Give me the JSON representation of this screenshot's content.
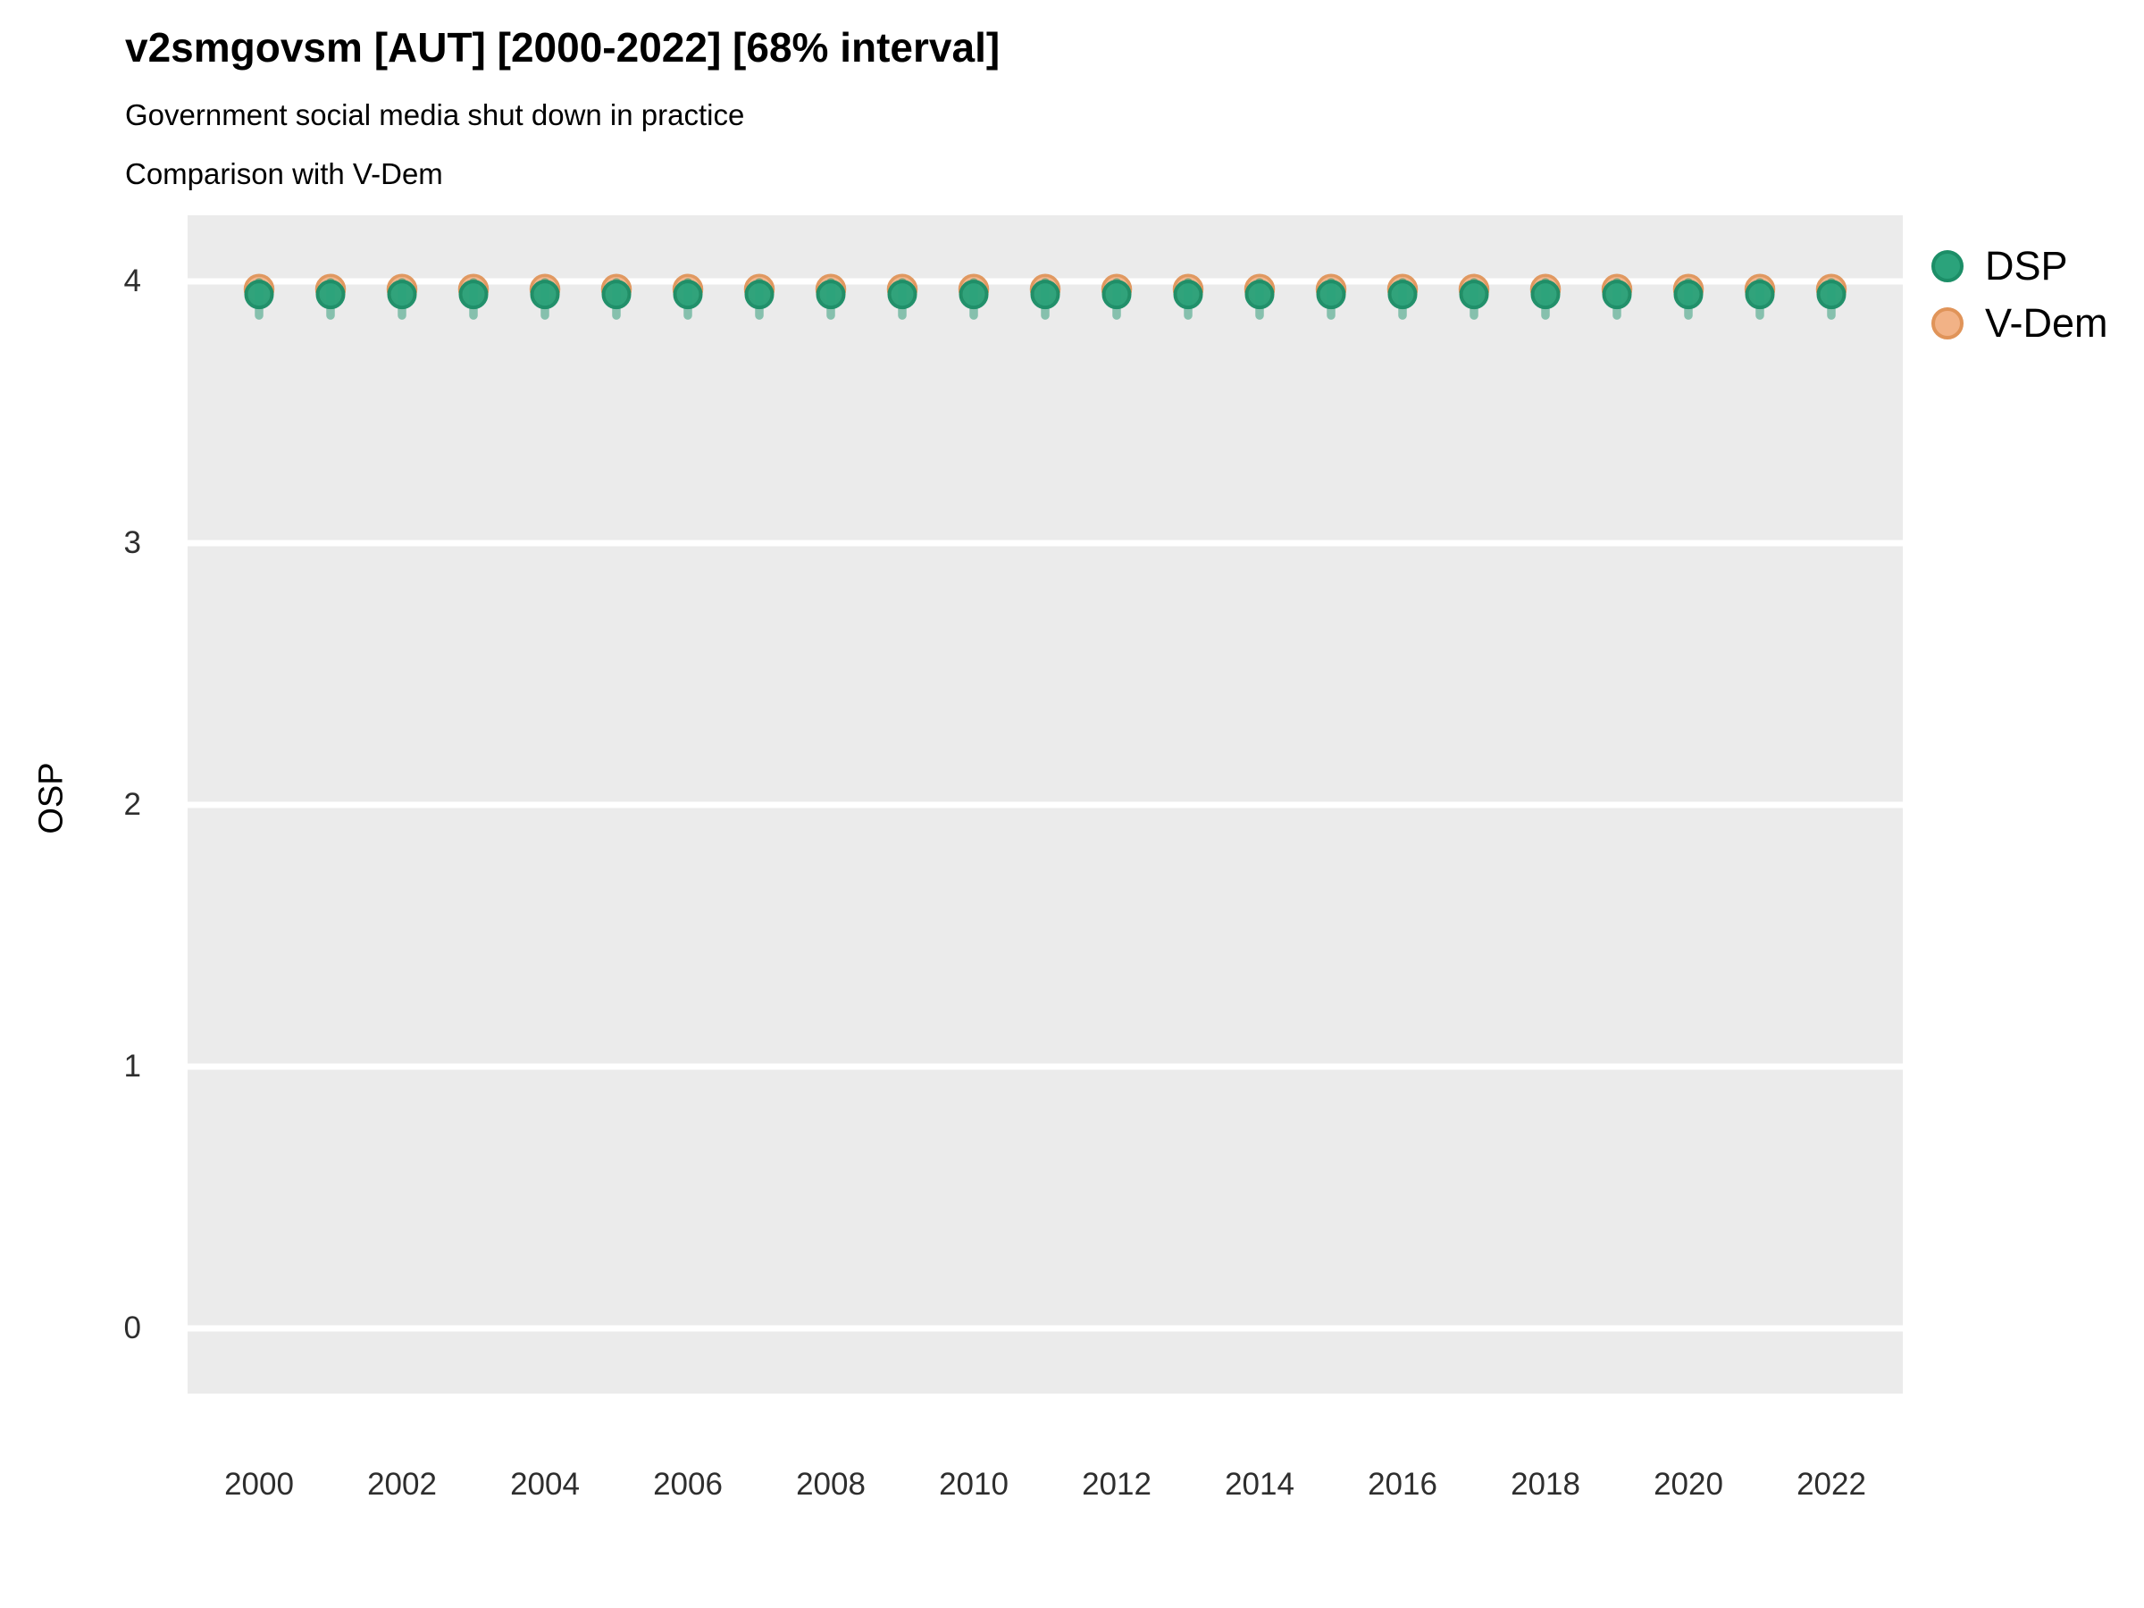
{
  "chart_data": {
    "type": "scatter",
    "title": "v2smgovsm [AUT] [2000-2022] [68% interval]",
    "subtitle": "Government social media shut down in practice",
    "subtitle2": "Comparison with V-Dem",
    "xlabel": "",
    "ylabel": "OSP",
    "xlim": [
      1999,
      2023
    ],
    "ylim": [
      -0.25,
      4.25
    ],
    "x_ticks": [
      2000,
      2002,
      2004,
      2006,
      2008,
      2010,
      2012,
      2014,
      2016,
      2018,
      2020,
      2022
    ],
    "y_ticks": [
      0,
      1,
      2,
      3,
      4
    ],
    "grid": "major horizontal white lines on gray panel, no minor gridlines",
    "legend_position": "right",
    "x": [
      2000,
      2001,
      2002,
      2003,
      2004,
      2005,
      2006,
      2007,
      2008,
      2009,
      2010,
      2011,
      2012,
      2013,
      2014,
      2015,
      2016,
      2017,
      2018,
      2019,
      2020,
      2021,
      2022
    ],
    "series": [
      {
        "name": "DSP",
        "values": [
          3.95,
          3.95,
          3.95,
          3.95,
          3.95,
          3.95,
          3.95,
          3.95,
          3.95,
          3.95,
          3.95,
          3.95,
          3.95,
          3.95,
          3.95,
          3.95,
          3.95,
          3.95,
          3.95,
          3.95,
          3.95,
          3.95,
          3.95
        ],
        "interval_68_low": [
          3.87,
          3.87,
          3.87,
          3.87,
          3.87,
          3.87,
          3.87,
          3.87,
          3.87,
          3.87,
          3.87,
          3.87,
          3.87,
          3.87,
          3.87,
          3.87,
          3.87,
          3.87,
          3.87,
          3.87,
          3.87,
          3.87,
          3.87
        ],
        "interval_68_high": [
          4.0,
          4.0,
          4.0,
          4.0,
          4.0,
          4.0,
          4.0,
          4.0,
          4.0,
          4.0,
          4.0,
          4.0,
          4.0,
          4.0,
          4.0,
          4.0,
          4.0,
          4.0,
          4.0,
          4.0,
          4.0,
          4.0,
          4.0
        ]
      },
      {
        "name": "V-Dem",
        "values": [
          3.97,
          3.97,
          3.97,
          3.97,
          3.97,
          3.97,
          3.97,
          3.97,
          3.97,
          3.97,
          3.97,
          3.97,
          3.97,
          3.97,
          3.97,
          3.97,
          3.97,
          3.97,
          3.97,
          3.97,
          3.97,
          3.97,
          3.97
        ]
      }
    ],
    "legend": {
      "entries": [
        {
          "label": "DSP",
          "fill": "#2BA37B",
          "stroke": "#1C8E67"
        },
        {
          "label": "V-Dem",
          "fill": "#F2B286",
          "stroke": "#E09459"
        }
      ]
    }
  },
  "colors": {
    "panel_bg": "#EBEBEB",
    "gridline": "#FFFFFF",
    "dsp_fill": "#2BA37B",
    "dsp_stroke": "#1C8E67",
    "interval_bar": "rgba(34,150,112,0.5)",
    "vdem_fill": "#F2B286",
    "vdem_stroke": "#E09459",
    "text": "#000000",
    "tick_text": "#2e2e2e"
  }
}
